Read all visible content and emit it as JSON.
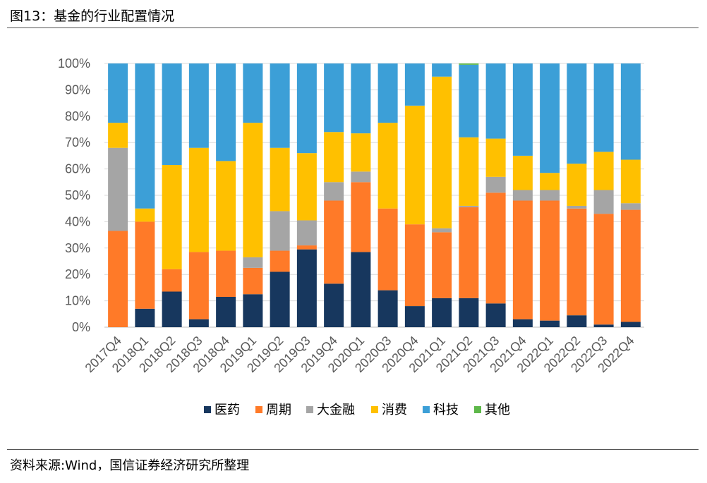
{
  "header": {
    "title": "图13：基金的行业配置情况"
  },
  "footer": {
    "source": "资料来源:Wind，国信证券经济研究所整理"
  },
  "chart_data": {
    "type": "bar",
    "stacked": true,
    "categories": [
      "2017Q4",
      "2018Q1",
      "2018Q2",
      "2018Q3",
      "2018Q4",
      "2019Q1",
      "2019Q2",
      "2019Q3",
      "2019Q4",
      "2020Q1",
      "2020Q3",
      "2020Q4",
      "2021Q1",
      "2021Q2",
      "2021Q3",
      "2021Q4",
      "2022Q1",
      "2022Q2",
      "2022Q3",
      "2022Q4"
    ],
    "ylim": [
      0,
      100
    ],
    "yticks": [
      "0%",
      "10%",
      "20%",
      "30%",
      "40%",
      "50%",
      "60%",
      "70%",
      "80%",
      "90%",
      "100%"
    ],
    "grid": true,
    "legend_position": "bottom",
    "series": [
      {
        "name": "医药",
        "color": "#17375e",
        "values": [
          0,
          7,
          13.5,
          3,
          11.5,
          12.5,
          21,
          29.5,
          16.5,
          28.5,
          14,
          8,
          11,
          11,
          9,
          3,
          2.5,
          4.5,
          1,
          2
        ]
      },
      {
        "name": "周期",
        "color": "#ff7a28",
        "values": [
          36.5,
          33,
          8.5,
          25.5,
          17.5,
          10,
          8,
          1.5,
          31.5,
          26.5,
          31,
          31,
          25,
          34.5,
          42,
          45,
          45.5,
          40.5,
          42,
          42.5
        ]
      },
      {
        "name": "大金融",
        "color": "#a5a5a5",
        "values": [
          31.5,
          0,
          0,
          0,
          0,
          4,
          15,
          9.5,
          7,
          4,
          0,
          0,
          1.5,
          0.5,
          6,
          4,
          4,
          1,
          9,
          2.5
        ]
      },
      {
        "name": "消费",
        "color": "#ffc000",
        "values": [
          9.5,
          5,
          39.5,
          39.5,
          34,
          51,
          24,
          25.5,
          19,
          14.5,
          32.5,
          45,
          57.5,
          26,
          14.5,
          13,
          6.5,
          16,
          14.5,
          16.5
        ]
      },
      {
        "name": "科技",
        "color": "#3c9fd7",
        "values": [
          22.5,
          55,
          38.5,
          32,
          37,
          22.5,
          32,
          34,
          26,
          26.5,
          22.5,
          16,
          5,
          27.5,
          28.5,
          35,
          41.5,
          38,
          33.5,
          36.5
        ]
      },
      {
        "name": "其他",
        "color": "#5eb84a",
        "values": [
          0,
          0,
          0,
          0,
          0,
          0,
          0,
          0,
          0,
          0,
          0,
          0,
          0,
          0.5,
          0,
          0,
          0,
          0,
          0,
          0
        ]
      }
    ]
  }
}
